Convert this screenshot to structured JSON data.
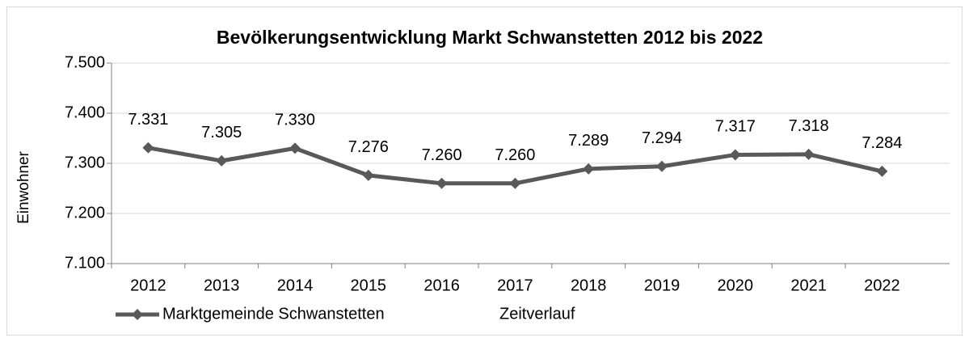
{
  "chart_data": {
    "type": "line",
    "title": "Bevölkerungsentwicklung Markt Schwanstetten 2012 bis 2022",
    "y_label": "Einwohner",
    "categories": [
      "2012",
      "2013",
      "2014",
      "2015",
      "2016",
      "2017",
      "2018",
      "2019",
      "2020",
      "2021",
      "2022"
    ],
    "series": [
      {
        "name": "Marktgemeinde Schwanstetten",
        "color": "#595959",
        "values": [
          7331,
          7305,
          7330,
          7276,
          7260,
          7260,
          7289,
          7294,
          7317,
          7318,
          7284
        ],
        "value_labels": [
          "7.331",
          "7.305",
          "7.330",
          "7.276",
          "7.260",
          "7.260",
          "7.289",
          "7.294",
          "7.317",
          "7.318",
          "7.284"
        ]
      },
      {
        "name": "Zeitverlauf",
        "color": "#ffffff",
        "values": [
          null,
          null,
          null,
          null,
          null,
          null,
          null,
          null,
          null,
          null,
          null
        ]
      }
    ],
    "ylim": [
      7100,
      7500
    ],
    "yticks": [
      {
        "value": 7100,
        "label": "7.100"
      },
      {
        "value": 7200,
        "label": "7.200"
      },
      {
        "value": 7300,
        "label": "7.300"
      },
      {
        "value": 7400,
        "label": "7.400"
      },
      {
        "value": 7500,
        "label": "7.500"
      }
    ],
    "grid": true,
    "legend": "bottom"
  }
}
